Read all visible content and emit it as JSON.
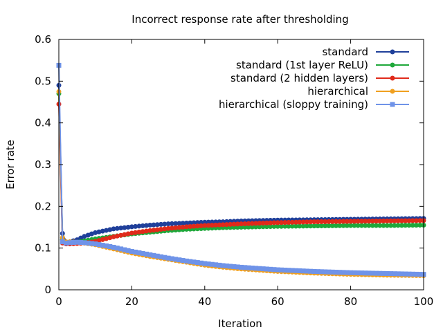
{
  "chart_data": {
    "type": "line",
    "title": "Incorrect response rate after thresholding",
    "xlabel": "Iteration",
    "ylabel": "Error rate",
    "xlim": [
      0,
      100
    ],
    "ylim": [
      0,
      0.6
    ],
    "xticks": [
      "0",
      "20",
      "40",
      "60",
      "80",
      "100"
    ],
    "yticks": [
      "0",
      "0.1",
      "0.2",
      "0.3",
      "0.4",
      "0.5",
      "0.6"
    ],
    "legend_position": "top-right",
    "grid": false,
    "series": [
      {
        "name": "standard",
        "color": "#1f3f9a",
        "marker": "circle",
        "x": [
          0,
          0.5,
          1,
          2,
          3,
          5,
          7,
          10,
          15,
          20,
          25,
          30,
          35,
          40,
          45,
          50,
          60,
          70,
          80,
          90,
          100
        ],
        "y": [
          0.49,
          0.3,
          0.135,
          0.115,
          0.115,
          0.12,
          0.128,
          0.137,
          0.146,
          0.151,
          0.155,
          0.158,
          0.16,
          0.162,
          0.163,
          0.165,
          0.167,
          0.168,
          0.169,
          0.17,
          0.171
        ]
      },
      {
        "name": "standard (1st layer ReLU)",
        "color": "#1ea83a",
        "marker": "circle",
        "x": [
          0,
          0.5,
          1,
          2,
          3,
          5,
          7,
          10,
          15,
          20,
          25,
          30,
          35,
          40,
          45,
          50,
          60,
          70,
          80,
          90,
          100
        ],
        "y": [
          0.47,
          0.28,
          0.12,
          0.112,
          0.112,
          0.114,
          0.117,
          0.122,
          0.128,
          0.134,
          0.138,
          0.142,
          0.145,
          0.147,
          0.149,
          0.15,
          0.152,
          0.153,
          0.154,
          0.154,
          0.155
        ]
      },
      {
        "name": "standard (2 hidden layers)",
        "color": "#e02a1a",
        "marker": "circle",
        "x": [
          0,
          0.5,
          1,
          2,
          3,
          5,
          7,
          10,
          15,
          20,
          25,
          30,
          35,
          40,
          45,
          50,
          60,
          70,
          80,
          90,
          100
        ],
        "y": [
          0.445,
          0.27,
          0.112,
          0.11,
          0.11,
          0.111,
          0.112,
          0.116,
          0.127,
          0.136,
          0.142,
          0.147,
          0.151,
          0.154,
          0.156,
          0.158,
          0.161,
          0.163,
          0.164,
          0.165,
          0.166
        ]
      },
      {
        "name": "hierarchical",
        "color": "#f0a020",
        "marker": "circle",
        "x": [
          0,
          0.5,
          1,
          2,
          3,
          5,
          7,
          10,
          15,
          20,
          25,
          30,
          35,
          40,
          45,
          50,
          60,
          70,
          80,
          90,
          100
        ],
        "y": [
          0.475,
          0.28,
          0.125,
          0.115,
          0.115,
          0.114,
          0.112,
          0.108,
          0.098,
          0.088,
          0.08,
          0.073,
          0.066,
          0.059,
          0.054,
          0.05,
          0.044,
          0.04,
          0.037,
          0.035,
          0.034
        ]
      },
      {
        "name": "hierarchical (sloppy training)",
        "color": "#6f93e8",
        "marker": "square",
        "x": [
          0,
          0.5,
          1,
          2,
          3,
          5,
          7,
          10,
          15,
          20,
          25,
          30,
          35,
          40,
          45,
          50,
          60,
          70,
          80,
          90,
          100
        ],
        "y": [
          0.538,
          0.3,
          0.115,
          0.112,
          0.113,
          0.114,
          0.113,
          0.11,
          0.102,
          0.092,
          0.084,
          0.076,
          0.069,
          0.063,
          0.058,
          0.054,
          0.048,
          0.044,
          0.041,
          0.039,
          0.037
        ]
      }
    ]
  }
}
